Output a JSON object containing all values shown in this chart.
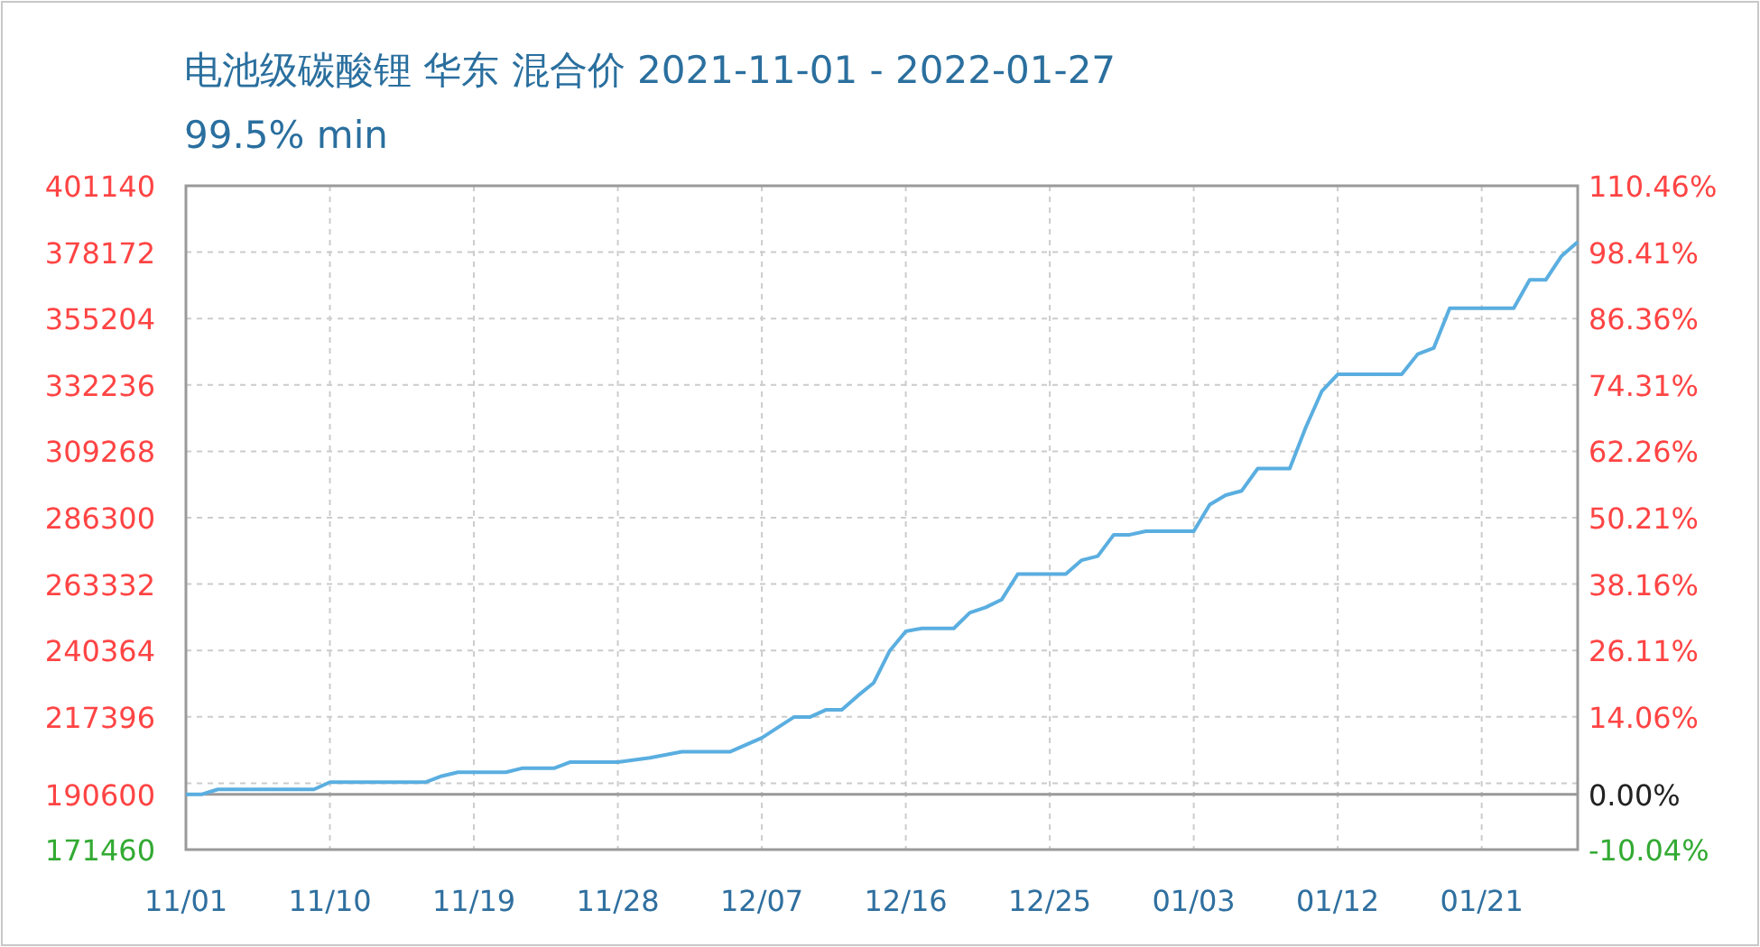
{
  "chart_data": {
    "type": "line",
    "title": "电池级碳酸锂 华东 混合价 2021-11-01 - 2022-01-27",
    "subtitle": "99.5% min",
    "x": [
      "2021-11-01",
      "2021-11-02",
      "2021-11-03",
      "2021-11-09",
      "2021-11-10",
      "2021-11-16",
      "2021-11-17",
      "2021-11-18",
      "2021-11-21",
      "2021-11-22",
      "2021-11-24",
      "2021-11-25",
      "2021-11-28",
      "2021-11-30",
      "2021-12-02",
      "2021-12-05",
      "2021-12-07",
      "2021-12-09",
      "2021-12-10",
      "2021-12-11",
      "2021-12-12",
      "2021-12-13",
      "2021-12-14",
      "2021-12-15",
      "2021-12-16",
      "2021-12-17",
      "2021-12-19",
      "2021-12-20",
      "2021-12-21",
      "2021-12-22",
      "2021-12-23",
      "2021-12-26",
      "2021-12-27",
      "2021-12-28",
      "2021-12-29",
      "2021-12-30",
      "2021-12-31",
      "2022-01-03",
      "2022-01-04",
      "2022-01-05",
      "2022-01-06",
      "2022-01-07",
      "2022-01-09",
      "2022-01-10",
      "2022-01-11",
      "2022-01-12",
      "2022-01-16",
      "2022-01-17",
      "2022-01-18",
      "2022-01-19",
      "2022-01-23",
      "2022-01-24",
      "2022-01-25",
      "2022-01-26",
      "2022-01-27"
    ],
    "series": [
      {
        "color": "#5aaee0",
        "values": [
          190600,
          190600,
          192300,
          192300,
          194800,
          194800,
          196900,
          198200,
          198200,
          199600,
          199600,
          201700,
          201700,
          203200,
          205300,
          205300,
          210100,
          217300,
          217300,
          219800,
          219800,
          224700,
          229200,
          240300,
          247000,
          248000,
          248000,
          253400,
          255300,
          258000,
          266800,
          266800,
          271600,
          273000,
          280400,
          280400,
          281600,
          281600,
          290800,
          294100,
          295600,
          303300,
          303300,
          317500,
          330000,
          335900,
          335900,
          342900,
          345000,
          358800,
          358800,
          368600,
          368600,
          376900,
          381700
        ]
      }
    ],
    "xlim": [
      "2021-11-01",
      "2022-01-27"
    ],
    "xticks": [
      {
        "value": "2021-11-01",
        "label": "11/01"
      },
      {
        "value": "2021-11-10",
        "label": "11/10"
      },
      {
        "value": "2021-11-19",
        "label": "11/19"
      },
      {
        "value": "2021-11-28",
        "label": "11/28"
      },
      {
        "value": "2021-12-07",
        "label": "12/07"
      },
      {
        "value": "2021-12-16",
        "label": "12/16"
      },
      {
        "value": "2021-12-25",
        "label": "12/25"
      },
      {
        "value": "2022-01-03",
        "label": "01/03"
      },
      {
        "value": "2022-01-12",
        "label": "01/12"
      },
      {
        "value": "2022-01-21",
        "label": "01/21"
      }
    ],
    "ylim": [
      171460,
      401140
    ],
    "yticks": [
      171460,
      190600,
      {
        "value": 194428,
        "label": null
      },
      217396,
      240364,
      263332,
      286300,
      309268,
      332236,
      355204,
      378172,
      401140
    ],
    "y2lim": [
      -10.04,
      110.46
    ],
    "y2ticks": [
      {
        "value": -10.04,
        "label": "-10.04%"
      },
      {
        "value": 0,
        "label": "0.00%"
      },
      {
        "value": 14.06,
        "label": "14.06%"
      },
      {
        "value": 26.11,
        "label": "26.11%"
      },
      {
        "value": 38.16,
        "label": "38.16%"
      },
      {
        "value": 50.21,
        "label": "50.21%"
      },
      {
        "value": 62.26,
        "label": "62.26%"
      },
      {
        "value": 74.31,
        "label": "74.31%"
      },
      {
        "value": 86.36,
        "label": "86.36%"
      },
      {
        "value": 98.41,
        "label": "98.41%"
      },
      {
        "value": 110.46,
        "label": "110.46%"
      }
    ],
    "ref_lines": [
      {
        "axis": "y",
        "value": 190600,
        "color": "#999999",
        "line_style": "solid"
      }
    ],
    "grid": true,
    "marker": "none",
    "line_style": "solid"
  }
}
